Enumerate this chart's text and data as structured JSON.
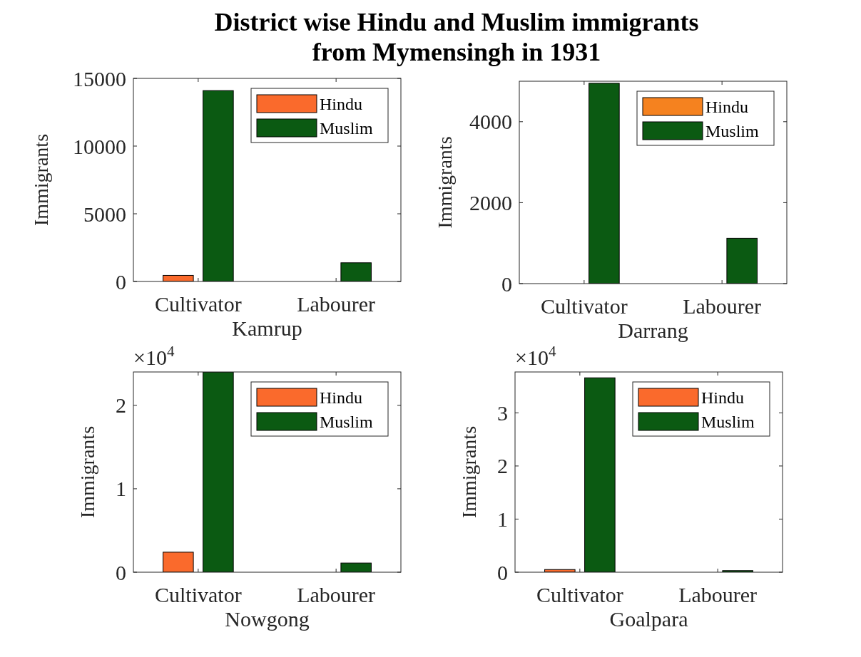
{
  "chart_data": [
    {
      "type": "bar",
      "title": "District wise Hindu and Muslim immigrants\nfrom Mymensingh in 1931",
      "xlabel": "Kamrup",
      "ylabel": "Immigrants",
      "categories": [
        "Cultivator",
        "Labourer"
      ],
      "series": [
        {
          "name": "Hindu",
          "color": "#fa6a2c",
          "values": [
            450,
            0
          ]
        },
        {
          "name": "Muslim",
          "color": "#0b5a12",
          "values": [
            14100,
            1380
          ]
        }
      ],
      "ylim": [
        0,
        15000
      ],
      "yticks": [
        0,
        5000,
        10000,
        15000
      ],
      "legend": "top right"
    },
    {
      "type": "bar",
      "xlabel": "Darrang",
      "ylabel": "Immigrants",
      "categories": [
        "Cultivator",
        "Labourer"
      ],
      "series": [
        {
          "name": "Hindu",
          "color": "#f5821f",
          "values": [
            0,
            0
          ]
        },
        {
          "name": "Muslim",
          "color": "#0b5a12",
          "values": [
            4950,
            1120
          ]
        }
      ],
      "ylim": [
        0,
        5000
      ],
      "yticks": [
        0,
        2000,
        4000
      ],
      "legend": "top right"
    },
    {
      "type": "bar",
      "xlabel": "Nowgong",
      "ylabel": "Immigrants",
      "categories": [
        "Cultivator",
        "Labourer"
      ],
      "series": [
        {
          "name": "Hindu",
          "color": "#fa6a2c",
          "values": [
            0.24,
            0
          ]
        },
        {
          "name": "Muslim",
          "color": "#0b5a12",
          "values": [
            2.4,
            0.11
          ]
        }
      ],
      "ylim": [
        0,
        2.4
      ],
      "yticks": [
        0,
        1,
        2
      ],
      "annotations": [
        "×10$^{4}$"
      ],
      "legend": "top right"
    },
    {
      "type": "bar",
      "xlabel": "Goalpara",
      "ylabel": "Immigrants",
      "categories": [
        "Cultivator",
        "Labourer"
      ],
      "series": [
        {
          "name": "Hindu",
          "color": "#fa6a2c",
          "values": [
            0.05,
            0
          ]
        },
        {
          "name": "Muslim",
          "color": "#0b5a12",
          "values": [
            3.66,
            0.03
          ]
        }
      ],
      "ylim": [
        0,
        3.77
      ],
      "yticks": [
        0,
        1,
        2,
        3
      ],
      "annotations": [
        "×10$^{4}$"
      ],
      "legend": "top right"
    }
  ]
}
